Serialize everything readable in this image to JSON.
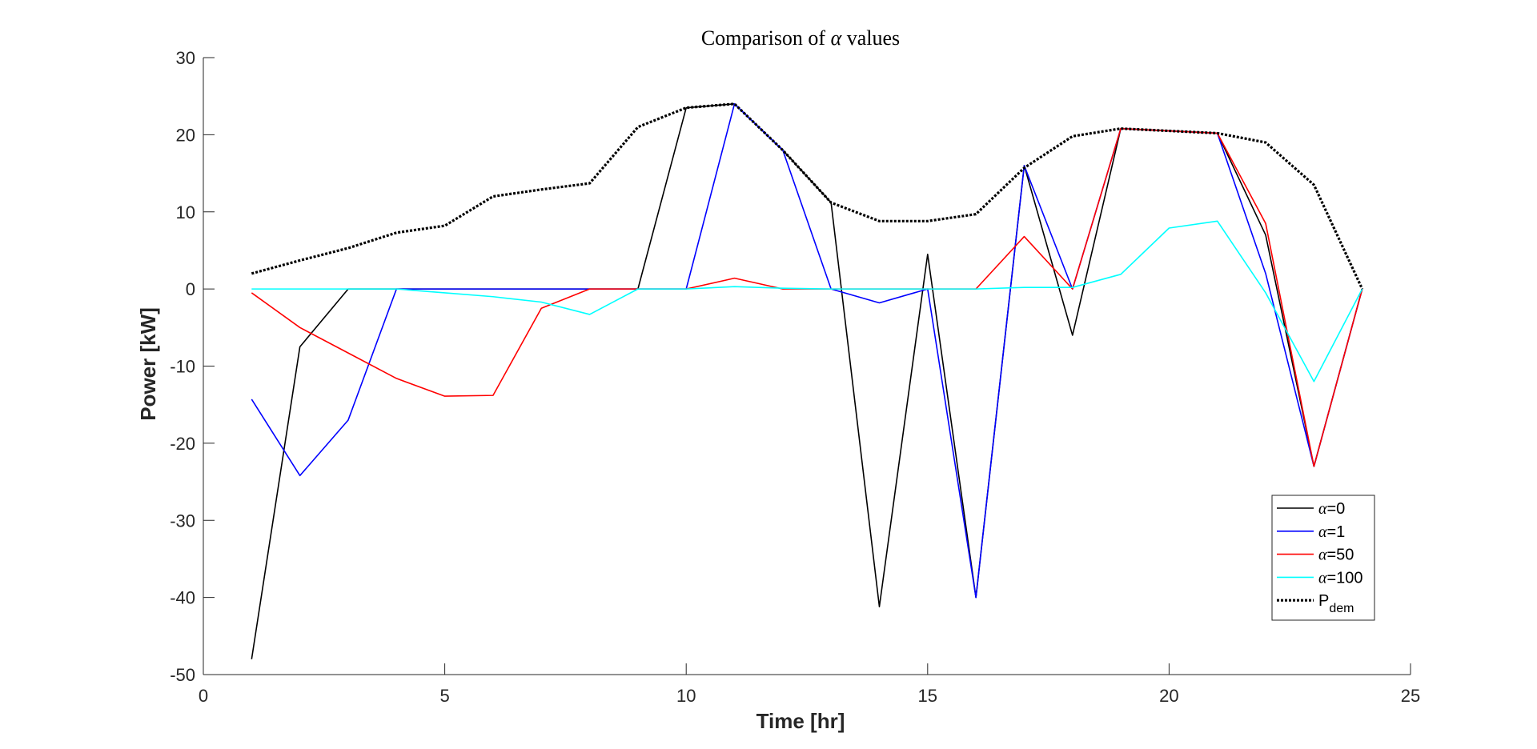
{
  "chart_data": {
    "type": "line",
    "title_prefix": "Comparison of",
    "title_symbol": "α",
    "title_suffix": "values",
    "xlabel": "Time [hr]",
    "ylabel": "Power [kW]",
    "xlim": [
      0,
      25
    ],
    "ylim": [
      -50,
      30
    ],
    "xticks": [
      0,
      5,
      10,
      15,
      20,
      25
    ],
    "yticks": [
      -50,
      -40,
      -30,
      -20,
      -10,
      0,
      10,
      20,
      30
    ],
    "grid": false,
    "legend_position": "bottom-right",
    "x": [
      1,
      2,
      3,
      4,
      5,
      6,
      7,
      8,
      9,
      10,
      11,
      12,
      13,
      14,
      15,
      16,
      17,
      18,
      19,
      20,
      21,
      22,
      23,
      24
    ],
    "series": [
      {
        "symbol": "α",
        "name": "=0",
        "color": "#000000",
        "style": "solid",
        "values": [
          -48,
          -7.5,
          0,
          0,
          0,
          0,
          0,
          0,
          0,
          23.5,
          24,
          18,
          11.2,
          -41.2,
          4.5,
          -40,
          16,
          -6,
          20.8,
          20.5,
          20.2,
          7,
          -23,
          0
        ]
      },
      {
        "symbol": "α",
        "name": "=1",
        "color": "#0000ff",
        "style": "solid",
        "values": [
          -14.3,
          -24.2,
          -17,
          0,
          0,
          0,
          0,
          0,
          0,
          0,
          24,
          18,
          0,
          -1.8,
          0,
          -40,
          16,
          0,
          20.8,
          20.5,
          20.2,
          2,
          -23,
          0
        ]
      },
      {
        "symbol": "α",
        "name": "=50",
        "color": "#ff0000",
        "style": "solid",
        "values": [
          -0.5,
          -5,
          -8.3,
          -11.6,
          -13.9,
          -13.8,
          -2.5,
          0,
          0,
          0,
          1.4,
          0,
          0,
          0,
          0,
          0,
          6.8,
          0,
          20.8,
          20.5,
          20.2,
          8.5,
          -23,
          0
        ]
      },
      {
        "symbol": "α",
        "name": "=100",
        "color": "#00ffff",
        "style": "solid",
        "values": [
          0,
          0,
          0,
          0,
          -0.5,
          -1,
          -1.7,
          -3.3,
          0,
          0,
          0.3,
          0.1,
          0,
          0,
          0,
          0,
          0.2,
          0.2,
          1.9,
          7.9,
          8.8,
          -0.5,
          -12,
          0
        ]
      },
      {
        "symbol": "",
        "name": "P",
        "subscript": "dem",
        "color": "#000000",
        "style": "dotted",
        "values": [
          2,
          3.7,
          5.3,
          7.3,
          8.2,
          12,
          12.9,
          13.7,
          21,
          23.5,
          24,
          18,
          11.2,
          8.8,
          8.8,
          9.7,
          15.7,
          19.8,
          20.8,
          20.5,
          20.2,
          19,
          13.5,
          0
        ]
      }
    ]
  }
}
